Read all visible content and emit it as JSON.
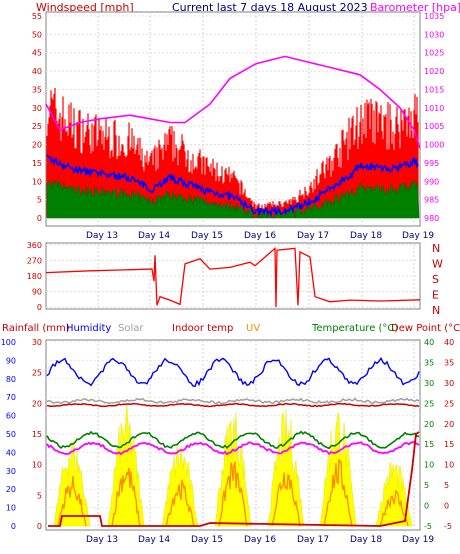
{
  "header": {
    "left": "Windspeed [mph]",
    "center": "Current last 7 days 18 August 2023",
    "right": "Barometer [hpa]"
  },
  "colors": {
    "red": "#ff0000",
    "darkred": "#cc0000",
    "blue": "#0000ff",
    "green": "#008000",
    "magenta": "#ff00ff",
    "orange": "#ff8c00",
    "yellow": "#ffff00",
    "grey": "#a0a0a0",
    "darkblue": "#000080"
  },
  "days": [
    "Day 13",
    "Day 14",
    "Day 15",
    "Day 16",
    "Day 17",
    "Day 18",
    "Day 19"
  ],
  "wind_axis": [
    "0",
    "5",
    "10",
    "15",
    "20",
    "25",
    "30",
    "35",
    "40",
    "45",
    "50",
    "55"
  ],
  "baro_axis": [
    "980",
    "985",
    "990",
    "995",
    "1000",
    "1005",
    "1010",
    "1015",
    "1020",
    "1025",
    "1030",
    "1035"
  ],
  "dir_axis": [
    "0",
    "90",
    "180",
    "270",
    "360"
  ],
  "dir_letters": [
    "N",
    "W",
    "S",
    "E",
    "N"
  ],
  "bottom_legend": {
    "rain": "Rainfall (mm)",
    "humidity": "Humidity",
    "solar": "Solar",
    "indoor": "Indoor temp",
    "uv": "UV",
    "temperature": "Temperature (°C)",
    "dewpoint": "Dew Point (°C)"
  },
  "rain_axis": [
    "0",
    "5",
    "10",
    "15",
    "20",
    "25",
    "30"
  ],
  "hum_axis": [
    "0",
    "10",
    "20",
    "30",
    "40",
    "50",
    "60",
    "70",
    "80",
    "90",
    "100"
  ],
  "temp_axis": [
    "-5",
    "0",
    "5",
    "10",
    "15",
    "20",
    "25",
    "30",
    "35",
    "40"
  ],
  "chart_data": [
    {
      "type": "line",
      "title": "Current last 7 days 18 August 2023",
      "ylabel": "Windspeed [mph]",
      "y2label": "Barometer [hpa]",
      "x": [
        "Day 13",
        "Day 14",
        "Day 15",
        "Day 16",
        "Day 17",
        "Day 18",
        "Day 19"
      ],
      "ylim": [
        0,
        55
      ],
      "y2lim": [
        980,
        1035
      ],
      "series": [
        {
          "name": "Windspeed [mph]",
          "color": "#ff0000",
          "values": [
            22,
            14,
            14,
            3,
            8,
            26,
            28
          ]
        },
        {
          "name": "Barometer [hpa]",
          "color": "#ff00ff",
          "values": [
            1008,
            1008,
            1016,
            1023,
            1023,
            1018,
            1002
          ]
        }
      ]
    },
    {
      "type": "line",
      "ylim": [
        0,
        360
      ],
      "series": [
        {
          "name": "Wind direction",
          "color": "#ff0000",
          "values": [
            200,
            210,
            260,
            230,
            320,
            60,
            40
          ]
        }
      ]
    },
    {
      "type": "line",
      "ylim": [
        0,
        30
      ],
      "series": [
        {
          "name": "Rainfall (mm)",
          "color": "#cc0000",
          "values": [
            0,
            2,
            0.5,
            0,
            0,
            0,
            10
          ]
        },
        {
          "name": "Humidity",
          "color": "#0000ff",
          "values": [
            85,
            80,
            85,
            82,
            75,
            78,
            88
          ]
        },
        {
          "name": "Solar",
          "color": "#a0a0a0",
          "values": [
            40,
            42,
            41,
            40,
            41,
            42,
            41
          ]
        },
        {
          "name": "Indoor temp",
          "color": "#cc0000",
          "values": [
            20,
            20,
            20,
            20,
            20,
            20,
            20
          ]
        },
        {
          "name": "UV",
          "color": "#ff8c00",
          "values": [
            5,
            5,
            4,
            5,
            6,
            5,
            3
          ]
        },
        {
          "name": "Temperature (°C)",
          "color": "#008000",
          "values": [
            16,
            17,
            16,
            17,
            16,
            17,
            16
          ]
        },
        {
          "name": "Dew Point (°C)",
          "color": "#ff00ff",
          "values": [
            13,
            14,
            13,
            14,
            12,
            14,
            13
          ]
        }
      ]
    }
  ]
}
